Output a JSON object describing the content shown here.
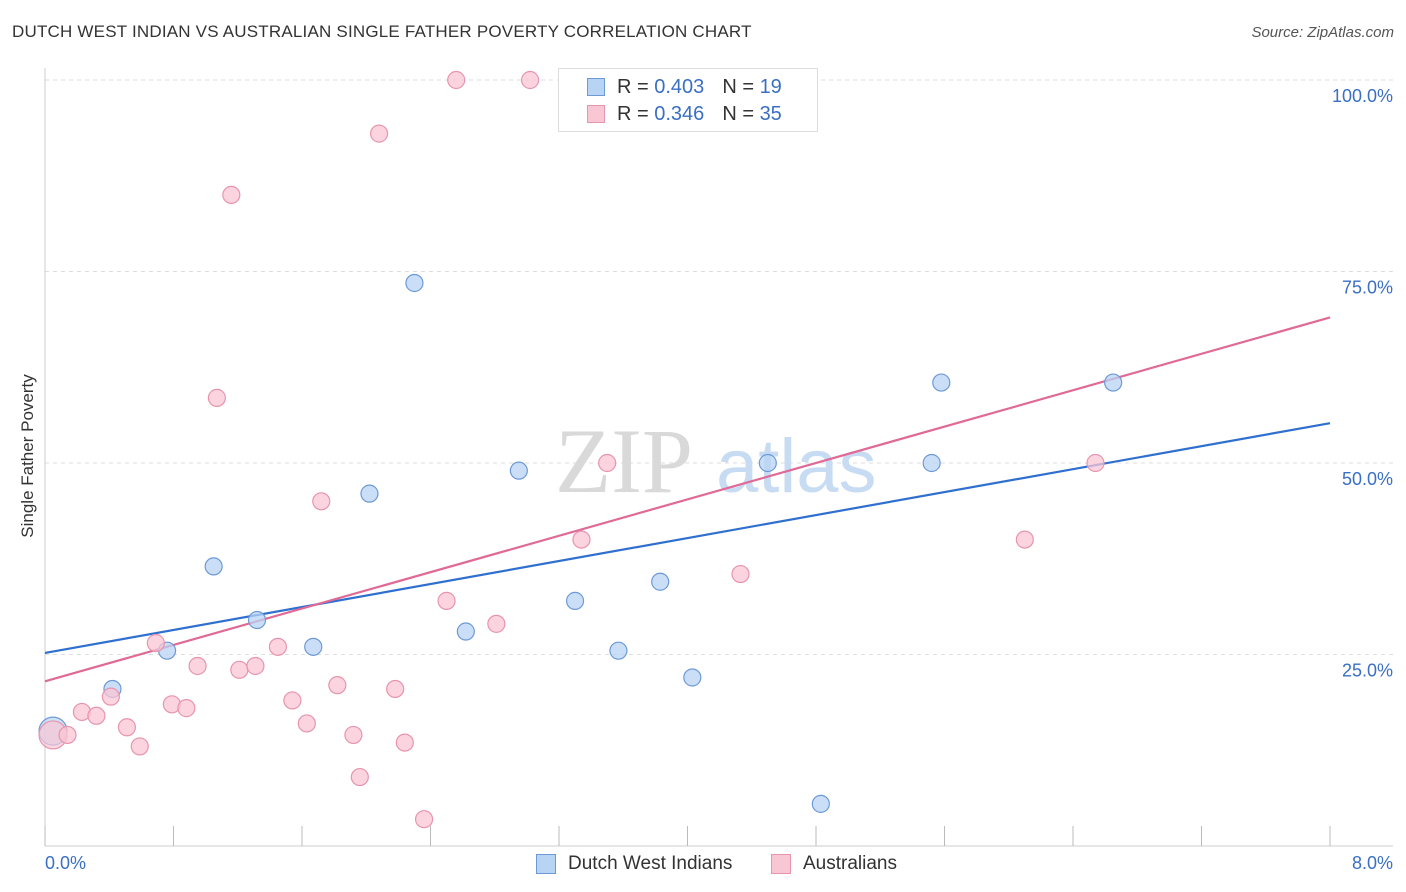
{
  "title": "DUTCH WEST INDIAN VS AUSTRALIAN SINGLE FATHER POVERTY CORRELATION CHART",
  "source": "Source: ZipAtlas.com",
  "watermark": {
    "zip": "ZIP",
    "atlas": "atlas"
  },
  "legend": {
    "series1": {
      "r_label": "R =",
      "r_value": "0.403",
      "n_label": "N =",
      "n_value": "19"
    },
    "series2": {
      "r_label": "R =",
      "r_value": "0.346",
      "n_label": "N =",
      "n_value": "35"
    }
  },
  "colors": {
    "blue_fill": "#b8d4f4",
    "blue_stroke": "#6d9ad6",
    "blue_line": "#2f6fcf",
    "pink_fill": "#f9c6d4",
    "pink_stroke": "#e795ad",
    "pink_line": "#e06a95",
    "tick_label": "#3a6fc4",
    "grid": "#dddddd"
  },
  "chart_data": {
    "type": "scatter",
    "title": "DUTCH WEST INDIAN VS AUSTRALIAN SINGLE FATHER POVERTY CORRELATION CHART",
    "xlabel": "",
    "ylabel": "Single Father Poverty",
    "xlim": [
      0,
      8
    ],
    "ylim": [
      0,
      100
    ],
    "x_tick_labels": [
      "0.0%",
      "8.0%"
    ],
    "y_ticks": [
      25,
      50,
      75,
      100
    ],
    "y_tick_labels": [
      "25.0%",
      "50.0%",
      "75.0%",
      "100.0%"
    ],
    "series": [
      {
        "name": "Dutch West Indians",
        "color": "#6d9ad6",
        "points": [
          {
            "x": 0.05,
            "y": 15.0,
            "big": true
          },
          {
            "x": 0.42,
            "y": 20.5
          },
          {
            "x": 0.76,
            "y": 25.5
          },
          {
            "x": 1.05,
            "y": 36.5
          },
          {
            "x": 1.32,
            "y": 29.5
          },
          {
            "x": 1.67,
            "y": 26.0
          },
          {
            "x": 2.02,
            "y": 46.0
          },
          {
            "x": 2.3,
            "y": 73.5
          },
          {
            "x": 2.62,
            "y": 28.0
          },
          {
            "x": 2.95,
            "y": 49.0
          },
          {
            "x": 3.3,
            "y": 32.0
          },
          {
            "x": 3.57,
            "y": 25.5
          },
          {
            "x": 3.83,
            "y": 34.5
          },
          {
            "x": 4.03,
            "y": 22.0
          },
          {
            "x": 4.5,
            "y": 50.0
          },
          {
            "x": 4.83,
            "y": 5.5
          },
          {
            "x": 5.52,
            "y": 50.0
          },
          {
            "x": 5.58,
            "y": 60.5
          },
          {
            "x": 6.65,
            "y": 60.5
          }
        ],
        "trend": {
          "x0": 0,
          "y0": 25.2,
          "x1": 8,
          "y1": 55.2
        }
      },
      {
        "name": "Australians",
        "color": "#e795ad",
        "points": [
          {
            "x": 0.05,
            "y": 14.5,
            "big": true
          },
          {
            "x": 0.14,
            "y": 14.5
          },
          {
            "x": 0.23,
            "y": 17.5
          },
          {
            "x": 0.32,
            "y": 17.0
          },
          {
            "x": 0.41,
            "y": 19.5
          },
          {
            "x": 0.51,
            "y": 15.5
          },
          {
            "x": 0.59,
            "y": 13.0
          },
          {
            "x": 0.69,
            "y": 26.5
          },
          {
            "x": 0.79,
            "y": 18.5
          },
          {
            "x": 0.88,
            "y": 18.0
          },
          {
            "x": 0.95,
            "y": 23.5
          },
          {
            "x": 1.07,
            "y": 58.5
          },
          {
            "x": 1.16,
            "y": 85.0
          },
          {
            "x": 1.21,
            "y": 23.0
          },
          {
            "x": 1.31,
            "y": 23.5
          },
          {
            "x": 1.45,
            "y": 26.0
          },
          {
            "x": 1.54,
            "y": 19.0
          },
          {
            "x": 1.63,
            "y": 16.0
          },
          {
            "x": 1.72,
            "y": 45.0
          },
          {
            "x": 1.82,
            "y": 21.0
          },
          {
            "x": 1.92,
            "y": 14.5
          },
          {
            "x": 1.96,
            "y": 9.0
          },
          {
            "x": 2.08,
            "y": 93.0
          },
          {
            "x": 2.18,
            "y": 20.5
          },
          {
            "x": 2.24,
            "y": 13.5
          },
          {
            "x": 2.36,
            "y": 3.5
          },
          {
            "x": 2.5,
            "y": 32.0
          },
          {
            "x": 2.56,
            "y": 100.0
          },
          {
            "x": 2.81,
            "y": 29.0
          },
          {
            "x": 3.02,
            "y": 100.0
          },
          {
            "x": 3.34,
            "y": 40.0
          },
          {
            "x": 3.5,
            "y": 50.0
          },
          {
            "x": 4.33,
            "y": 35.5
          },
          {
            "x": 6.1,
            "y": 40.0
          },
          {
            "x": 6.54,
            "y": 50.0
          }
        ],
        "trend": {
          "x0": 0,
          "y0": 21.5,
          "x1": 8,
          "y1": 69.0
        }
      }
    ]
  }
}
